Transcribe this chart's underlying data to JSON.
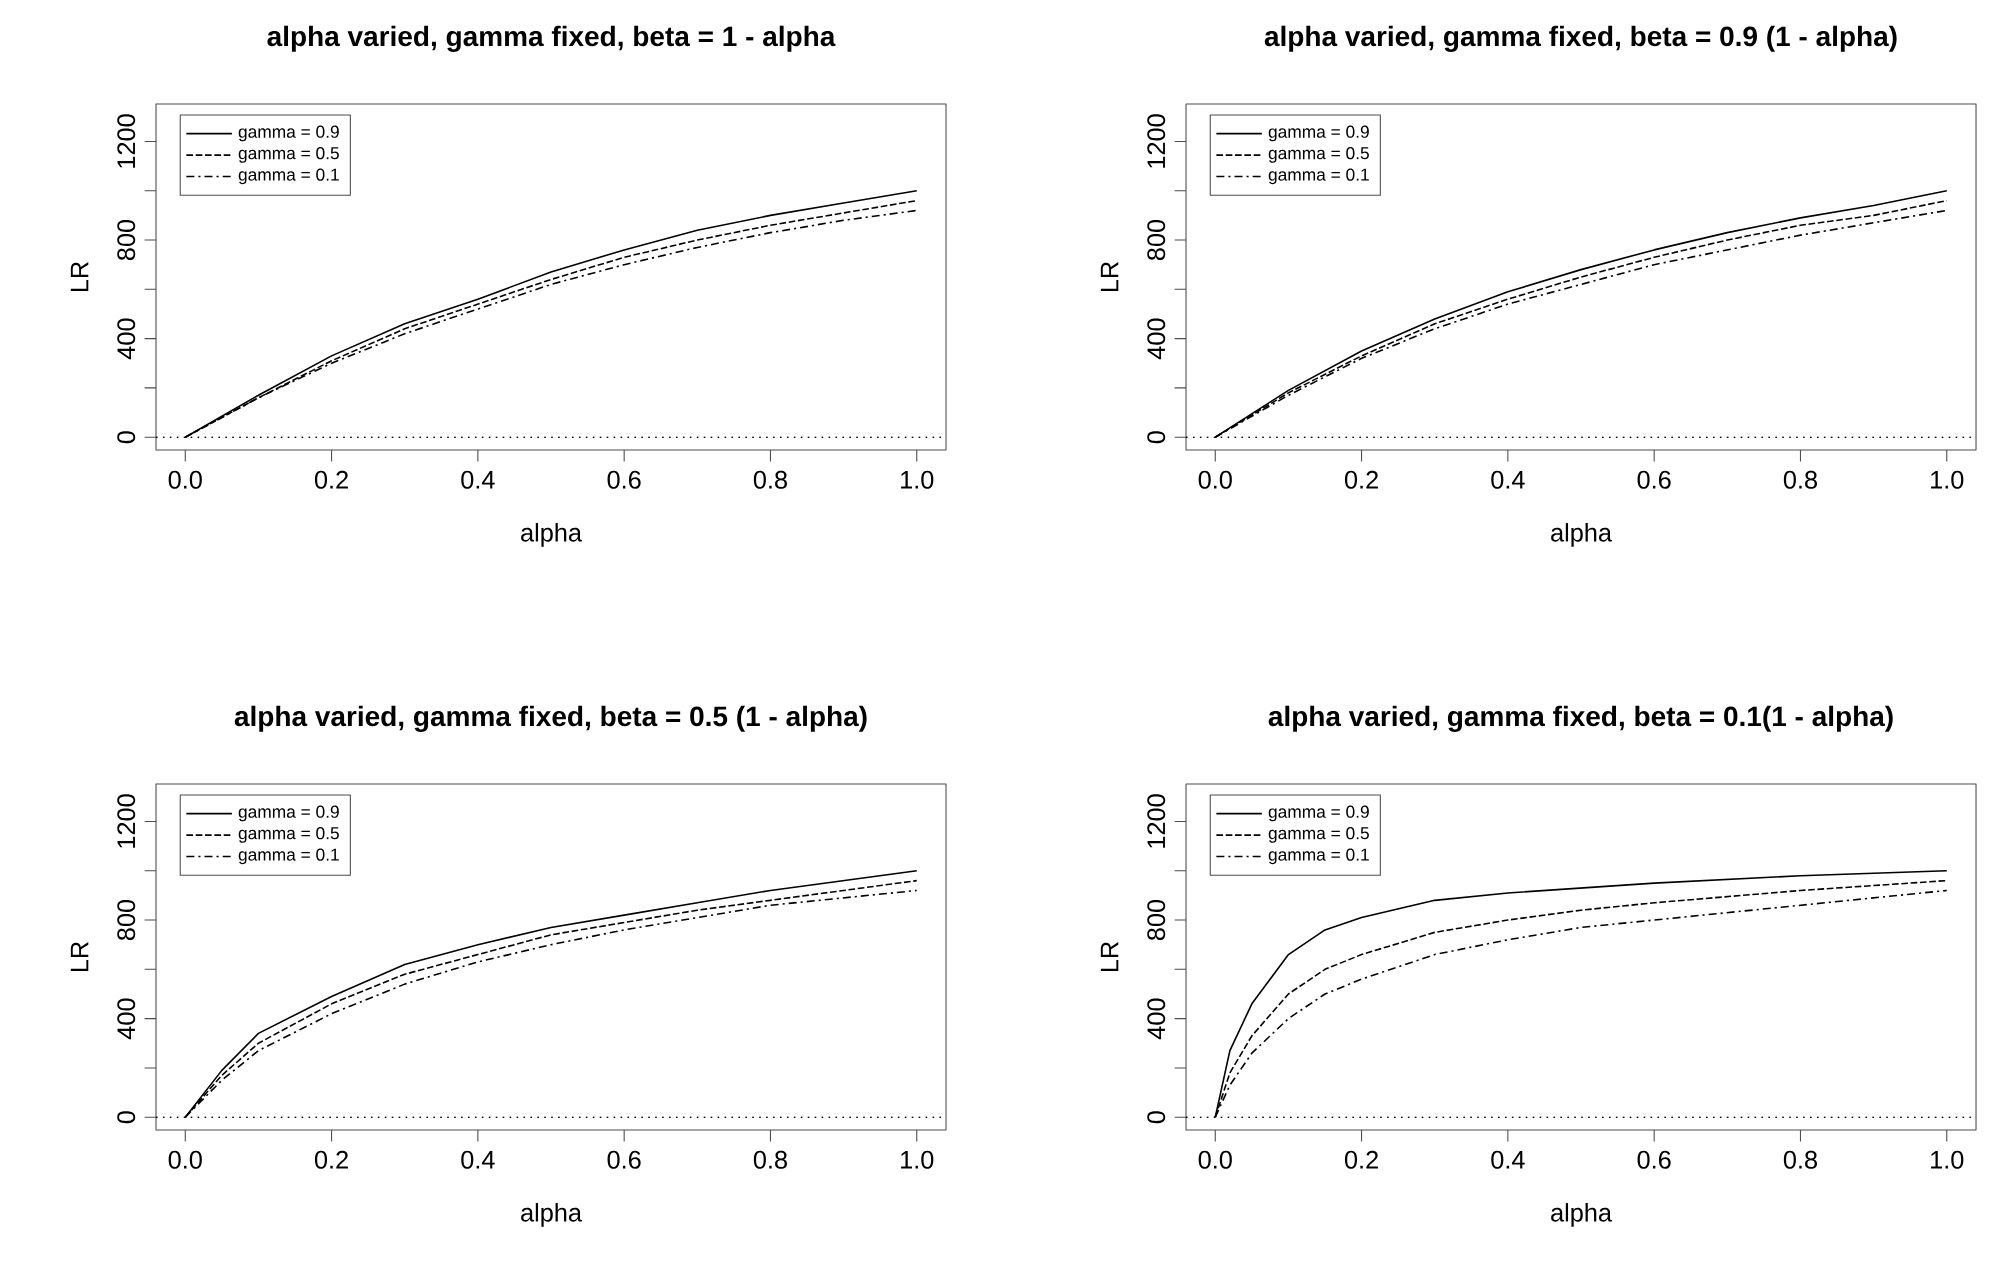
{
  "chart_data": [
    {
      "type": "line",
      "title": "alpha varied, gamma fixed, beta = 1 - alpha",
      "xlabel": "alpha",
      "ylabel": "LR",
      "xlim": [
        -0.04,
        1.04
      ],
      "ylim": [
        -52,
        1352
      ],
      "xticks": [
        {
          "value": 0,
          "label": "0.0"
        },
        {
          "value": 0.2,
          "label": "0.2"
        },
        {
          "value": 0.4,
          "label": "0.4"
        },
        {
          "value": 0.6,
          "label": "0.6"
        },
        {
          "value": 0.8,
          "label": "0.8"
        },
        {
          "value": 1,
          "label": "1.0"
        }
      ],
      "yticks": [
        0,
        {
          "value": 200,
          "label": null
        },
        400,
        {
          "value": 600,
          "label": null
        },
        800,
        {
          "value": 1000,
          "label": null
        },
        1200
      ],
      "grid": false,
      "legend": "top left",
      "ref_lines": [
        {
          "axis": "y",
          "value": 0,
          "line_style": "dotted"
        }
      ],
      "x": [
        0,
        0.1,
        0.2,
        0.3,
        0.4,
        0.5,
        0.6,
        0.7,
        0.8,
        0.9,
        1
      ],
      "series": [
        {
          "name": "gamma = 0.9",
          "color": "#000000",
          "line_style": "solid",
          "values": [
            0,
            170,
            330,
            460,
            560,
            670,
            760,
            840,
            900,
            950,
            1000
          ]
        },
        {
          "name": "gamma = 0.5",
          "color": "#000000",
          "line_style": "dashed",
          "values": [
            0,
            160,
            310,
            440,
            540,
            640,
            730,
            800,
            860,
            910,
            960
          ]
        },
        {
          "name": "gamma = 0.1",
          "color": "#000000",
          "line_style": "dashdot",
          "values": [
            0,
            160,
            300,
            420,
            520,
            620,
            700,
            770,
            830,
            880,
            920
          ]
        }
      ]
    },
    {
      "type": "line",
      "title": "alpha varied, gamma fixed, beta = 0.9 (1 - alpha)",
      "xlabel": "alpha",
      "ylabel": "LR",
      "xlim": [
        -0.04,
        1.04
      ],
      "ylim": [
        -52,
        1352
      ],
      "xticks": [
        {
          "value": 0,
          "label": "0.0"
        },
        {
          "value": 0.2,
          "label": "0.2"
        },
        {
          "value": 0.4,
          "label": "0.4"
        },
        {
          "value": 0.6,
          "label": "0.6"
        },
        {
          "value": 0.8,
          "label": "0.8"
        },
        {
          "value": 1,
          "label": "1.0"
        }
      ],
      "yticks": [
        0,
        {
          "value": 200,
          "label": null
        },
        400,
        {
          "value": 600,
          "label": null
        },
        800,
        {
          "value": 1000,
          "label": null
        },
        1200
      ],
      "grid": false,
      "legend": "top left",
      "ref_lines": [
        {
          "axis": "y",
          "value": 0,
          "line_style": "dotted"
        }
      ],
      "x": [
        0,
        0.1,
        0.2,
        0.3,
        0.4,
        0.5,
        0.6,
        0.7,
        0.8,
        0.9,
        1
      ],
      "series": [
        {
          "name": "gamma = 0.9",
          "color": "#000000",
          "line_style": "solid",
          "values": [
            0,
            190,
            350,
            480,
            590,
            680,
            760,
            830,
            890,
            940,
            1000
          ]
        },
        {
          "name": "gamma = 0.5",
          "color": "#000000",
          "line_style": "dashed",
          "values": [
            0,
            180,
            330,
            460,
            560,
            650,
            730,
            800,
            860,
            900,
            960
          ]
        },
        {
          "name": "gamma = 0.1",
          "color": "#000000",
          "line_style": "dashdot",
          "values": [
            0,
            170,
            320,
            440,
            540,
            620,
            700,
            760,
            820,
            870,
            920
          ]
        }
      ]
    },
    {
      "type": "line",
      "title": "alpha varied, gamma fixed, beta = 0.5 (1 - alpha)",
      "xlabel": "alpha",
      "ylabel": "LR",
      "xlim": [
        -0.04,
        1.04
      ],
      "ylim": [
        -52,
        1352
      ],
      "xticks": [
        {
          "value": 0,
          "label": "0.0"
        },
        {
          "value": 0.2,
          "label": "0.2"
        },
        {
          "value": 0.4,
          "label": "0.4"
        },
        {
          "value": 0.6,
          "label": "0.6"
        },
        {
          "value": 0.8,
          "label": "0.8"
        },
        {
          "value": 1,
          "label": "1.0"
        }
      ],
      "yticks": [
        0,
        {
          "value": 200,
          "label": null
        },
        400,
        {
          "value": 600,
          "label": null
        },
        800,
        {
          "value": 1000,
          "label": null
        },
        1200
      ],
      "grid": false,
      "legend": "top left",
      "ref_lines": [
        {
          "axis": "y",
          "value": 0,
          "line_style": "dotted"
        }
      ],
      "x": [
        0,
        0.05,
        0.1,
        0.2,
        0.3,
        0.4,
        0.5,
        0.6,
        0.7,
        0.8,
        0.9,
        1
      ],
      "series": [
        {
          "name": "gamma = 0.9",
          "color": "#000000",
          "line_style": "solid",
          "values": [
            0,
            190,
            340,
            490,
            620,
            700,
            770,
            820,
            870,
            920,
            960,
            1000
          ]
        },
        {
          "name": "gamma = 0.5",
          "color": "#000000",
          "line_style": "dashed",
          "values": [
            0,
            170,
            300,
            460,
            580,
            660,
            740,
            790,
            840,
            880,
            920,
            960
          ]
        },
        {
          "name": "gamma = 0.1",
          "color": "#000000",
          "line_style": "dashdot",
          "values": [
            0,
            150,
            270,
            420,
            540,
            630,
            700,
            760,
            810,
            860,
            890,
            920
          ]
        }
      ]
    },
    {
      "type": "line",
      "title": "alpha varied, gamma fixed, beta = 0.1(1 - alpha)",
      "xlabel": "alpha",
      "ylabel": "LR",
      "xlim": [
        -0.04,
        1.04
      ],
      "ylim": [
        -52,
        1352
      ],
      "xticks": [
        {
          "value": 0,
          "label": "0.0"
        },
        {
          "value": 0.2,
          "label": "0.2"
        },
        {
          "value": 0.4,
          "label": "0.4"
        },
        {
          "value": 0.6,
          "label": "0.6"
        },
        {
          "value": 0.8,
          "label": "0.8"
        },
        {
          "value": 1,
          "label": "1.0"
        }
      ],
      "yticks": [
        0,
        {
          "value": 200,
          "label": null
        },
        400,
        {
          "value": 600,
          "label": null
        },
        800,
        {
          "value": 1000,
          "label": null
        },
        1200
      ],
      "grid": false,
      "legend": "top left",
      "ref_lines": [
        {
          "axis": "y",
          "value": 0,
          "line_style": "dotted"
        }
      ],
      "x": [
        0,
        0.02,
        0.05,
        0.1,
        0.15,
        0.2,
        0.3,
        0.4,
        0.5,
        0.6,
        0.8,
        1
      ],
      "series": [
        {
          "name": "gamma = 0.9",
          "color": "#000000",
          "line_style": "solid",
          "values": [
            0,
            270,
            460,
            660,
            760,
            810,
            880,
            910,
            930,
            950,
            980,
            1000
          ]
        },
        {
          "name": "gamma = 0.5",
          "color": "#000000",
          "line_style": "dashed",
          "values": [
            0,
            180,
            330,
            500,
            600,
            660,
            750,
            800,
            840,
            870,
            920,
            960
          ]
        },
        {
          "name": "gamma = 0.1",
          "color": "#000000",
          "line_style": "dashdot",
          "values": [
            0,
            130,
            260,
            400,
            500,
            560,
            660,
            720,
            770,
            800,
            860,
            920
          ]
        }
      ]
    }
  ]
}
